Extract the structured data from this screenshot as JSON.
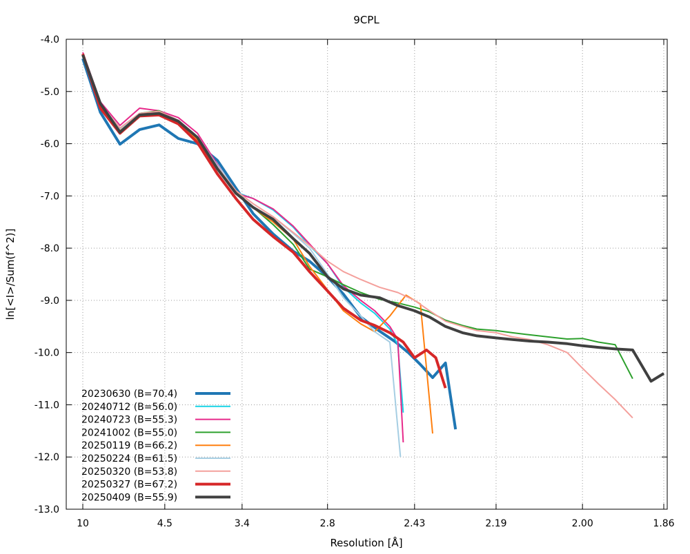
{
  "chart_data": {
    "type": "line",
    "title": "9CPL",
    "xlabel": "Resolution [Å]",
    "ylabel": "ln[<I>/Sum(f^2)]",
    "xscale": "reciprocal-square (1/d^2)",
    "xticks": [
      "10",
      "4.5",
      "3.4",
      "2.8",
      "2.43",
      "2.19",
      "2.00",
      "1.86"
    ],
    "yticks": [
      "-4.0",
      "-5.0",
      "-6.0",
      "-7.0",
      "-8.0",
      "-9.0",
      "-10.0",
      "-11.0",
      "-12.0",
      "-13.0"
    ],
    "ylim": [
      -13.0,
      -4.0
    ],
    "grid": true,
    "legend_position": "bottom-left",
    "series": [
      {
        "name": "20230630 (B=70.4)",
        "color": "#1f77b4",
        "width": "thick",
        "x": [
          10,
          7.36,
          5.99,
          5.18,
          4.63,
          4.23,
          3.92,
          3.66,
          3.46,
          3.3,
          3.14,
          3.0,
          2.9,
          2.8,
          2.72,
          2.64,
          2.56,
          2.5,
          2.45,
          2.41,
          2.37,
          2.33,
          2.3
        ],
        "y": [
          -4.37,
          -5.4,
          -6.01,
          -5.73,
          -5.64,
          -5.9,
          -6.0,
          -6.32,
          -6.85,
          -7.34,
          -7.73,
          -8.06,
          -8.25,
          -8.55,
          -8.88,
          -9.32,
          -9.59,
          -9.79,
          -10.01,
          -10.23,
          -10.48,
          -10.2,
          -11.47
        ]
      },
      {
        "name": "20240712 (B=56.0)",
        "color": "#17d3e6",
        "width": "thin",
        "x": [
          10,
          7.36,
          5.99,
          5.18,
          4.63,
          4.23,
          3.92,
          3.66,
          3.46,
          3.3,
          3.14,
          3.0,
          2.9,
          2.8,
          2.72,
          2.64,
          2.58,
          2.52,
          2.49,
          2.47
        ],
        "y": [
          -4.28,
          -5.25,
          -5.7,
          -5.42,
          -5.38,
          -5.55,
          -5.9,
          -6.45,
          -6.93,
          -7.05,
          -7.27,
          -7.6,
          -7.95,
          -8.3,
          -8.75,
          -9.05,
          -9.25,
          -9.55,
          -9.85,
          -11.15
        ]
      },
      {
        "name": "20240723 (B=55.3)",
        "color": "#e7298a",
        "width": "thin",
        "x": [
          10,
          7.36,
          5.99,
          5.18,
          4.63,
          4.23,
          3.92,
          3.66,
          3.46,
          3.3,
          3.14,
          3.0,
          2.9,
          2.8,
          2.72,
          2.64,
          2.58,
          2.52,
          2.49,
          2.47
        ],
        "y": [
          -4.25,
          -5.2,
          -5.65,
          -5.32,
          -5.37,
          -5.5,
          -5.8,
          -6.4,
          -6.95,
          -7.05,
          -7.25,
          -7.58,
          -7.92,
          -8.3,
          -8.72,
          -9.0,
          -9.2,
          -9.5,
          -9.75,
          -11.72
        ]
      },
      {
        "name": "20241002 (B=55.0)",
        "color": "#2ca02c",
        "width": "thin",
        "x": [
          10,
          7.36,
          5.99,
          5.18,
          4.63,
          4.23,
          3.92,
          3.66,
          3.46,
          3.3,
          3.14,
          3.0,
          2.9,
          2.8,
          2.72,
          2.64,
          2.56,
          2.49,
          2.43,
          2.38,
          2.33,
          2.28,
          2.24,
          2.19,
          2.15,
          2.11,
          2.07,
          2.03,
          2.0,
          1.97,
          1.94,
          1.91
        ],
        "y": [
          -4.3,
          -5.25,
          -5.72,
          -5.42,
          -5.37,
          -5.58,
          -5.9,
          -6.45,
          -6.92,
          -7.22,
          -7.55,
          -7.93,
          -8.4,
          -8.55,
          -8.7,
          -8.85,
          -8.98,
          -9.05,
          -9.13,
          -9.22,
          -9.38,
          -9.48,
          -9.55,
          -9.58,
          -9.62,
          -9.66,
          -9.7,
          -9.74,
          -9.73,
          -9.8,
          -9.85,
          -10.5
        ]
      },
      {
        "name": "20250119 (B=66.2)",
        "color": "#ff7f0e",
        "width": "thin",
        "x": [
          10,
          7.36,
          5.99,
          5.18,
          4.63,
          4.23,
          3.92,
          3.66,
          3.46,
          3.3,
          3.14,
          3.0,
          2.9,
          2.8,
          2.72,
          2.64,
          2.58,
          2.52,
          2.46,
          2.41,
          2.37
        ],
        "y": [
          -4.28,
          -5.3,
          -5.75,
          -5.45,
          -5.4,
          -5.58,
          -5.93,
          -6.5,
          -6.95,
          -7.23,
          -7.5,
          -7.83,
          -8.35,
          -8.8,
          -9.2,
          -9.45,
          -9.6,
          -9.3,
          -8.9,
          -9.07,
          -11.55
        ]
      },
      {
        "name": "20250224 (B=61.5)",
        "color": "#a6cee3",
        "width": "thin",
        "x": [
          10,
          7.36,
          5.99,
          5.18,
          4.63,
          4.23,
          3.92,
          3.66,
          3.46,
          3.3,
          3.14,
          3.0,
          2.9,
          2.8,
          2.72,
          2.64,
          2.58,
          2.52,
          2.48
        ],
        "y": [
          -4.28,
          -5.27,
          -5.72,
          -5.43,
          -5.38,
          -5.57,
          -5.87,
          -6.42,
          -6.9,
          -7.15,
          -7.4,
          -7.72,
          -8.0,
          -8.5,
          -8.95,
          -9.3,
          -9.6,
          -9.8,
          -12.0
        ]
      },
      {
        "name": "20250320 (B=53.8)",
        "color": "#f4a09c",
        "width": "thin",
        "x": [
          10,
          7.36,
          5.99,
          5.18,
          4.63,
          4.23,
          3.92,
          3.66,
          3.46,
          3.3,
          3.14,
          3.0,
          2.9,
          2.8,
          2.72,
          2.64,
          2.56,
          2.49,
          2.43,
          2.38,
          2.33,
          2.28,
          2.24,
          2.19,
          2.15,
          2.11,
          2.07,
          2.03,
          2.0,
          1.97,
          1.94,
          1.91
        ],
        "y": [
          -4.3,
          -5.25,
          -5.7,
          -5.42,
          -5.38,
          -5.55,
          -5.88,
          -6.45,
          -6.9,
          -7.15,
          -7.4,
          -7.7,
          -7.95,
          -8.25,
          -8.45,
          -8.6,
          -8.75,
          -8.85,
          -9.0,
          -9.2,
          -9.4,
          -9.5,
          -9.58,
          -9.62,
          -9.7,
          -9.75,
          -9.85,
          -10.0,
          -10.3,
          -10.6,
          -10.9,
          -11.25
        ]
      },
      {
        "name": "20250327 (B=67.2)",
        "color": "#d62728",
        "width": "thick",
        "x": [
          10,
          7.36,
          5.99,
          5.18,
          4.63,
          4.23,
          3.92,
          3.66,
          3.46,
          3.3,
          3.14,
          3.0,
          2.9,
          2.8,
          2.72,
          2.64,
          2.58,
          2.52,
          2.47,
          2.43,
          2.39,
          2.36,
          2.33
        ],
        "y": [
          -4.28,
          -5.32,
          -5.8,
          -5.47,
          -5.45,
          -5.62,
          -5.98,
          -6.58,
          -7.05,
          -7.45,
          -7.78,
          -8.08,
          -8.45,
          -8.82,
          -9.15,
          -9.38,
          -9.48,
          -9.62,
          -9.8,
          -10.1,
          -9.95,
          -10.1,
          -10.68
        ]
      },
      {
        "name": "20250409 (B=55.9)",
        "color": "#404040",
        "width": "thick",
        "x": [
          10,
          7.36,
          5.99,
          5.18,
          4.63,
          4.23,
          3.92,
          3.66,
          3.46,
          3.3,
          3.14,
          3.0,
          2.9,
          2.8,
          2.72,
          2.64,
          2.56,
          2.49,
          2.43,
          2.38,
          2.33,
          2.28,
          2.24,
          2.19,
          2.15,
          2.11,
          2.07,
          2.03,
          2.0,
          1.97,
          1.94,
          1.91,
          1.88,
          1.86
        ],
        "y": [
          -4.3,
          -5.23,
          -5.78,
          -5.45,
          -5.42,
          -5.57,
          -5.88,
          -6.48,
          -6.95,
          -7.22,
          -7.45,
          -7.82,
          -8.1,
          -8.55,
          -8.78,
          -8.9,
          -8.95,
          -9.1,
          -9.2,
          -9.32,
          -9.5,
          -9.62,
          -9.68,
          -9.72,
          -9.75,
          -9.78,
          -9.8,
          -9.83,
          -9.87,
          -9.9,
          -9.93,
          -9.95,
          -10.55,
          -10.4
        ]
      }
    ]
  }
}
